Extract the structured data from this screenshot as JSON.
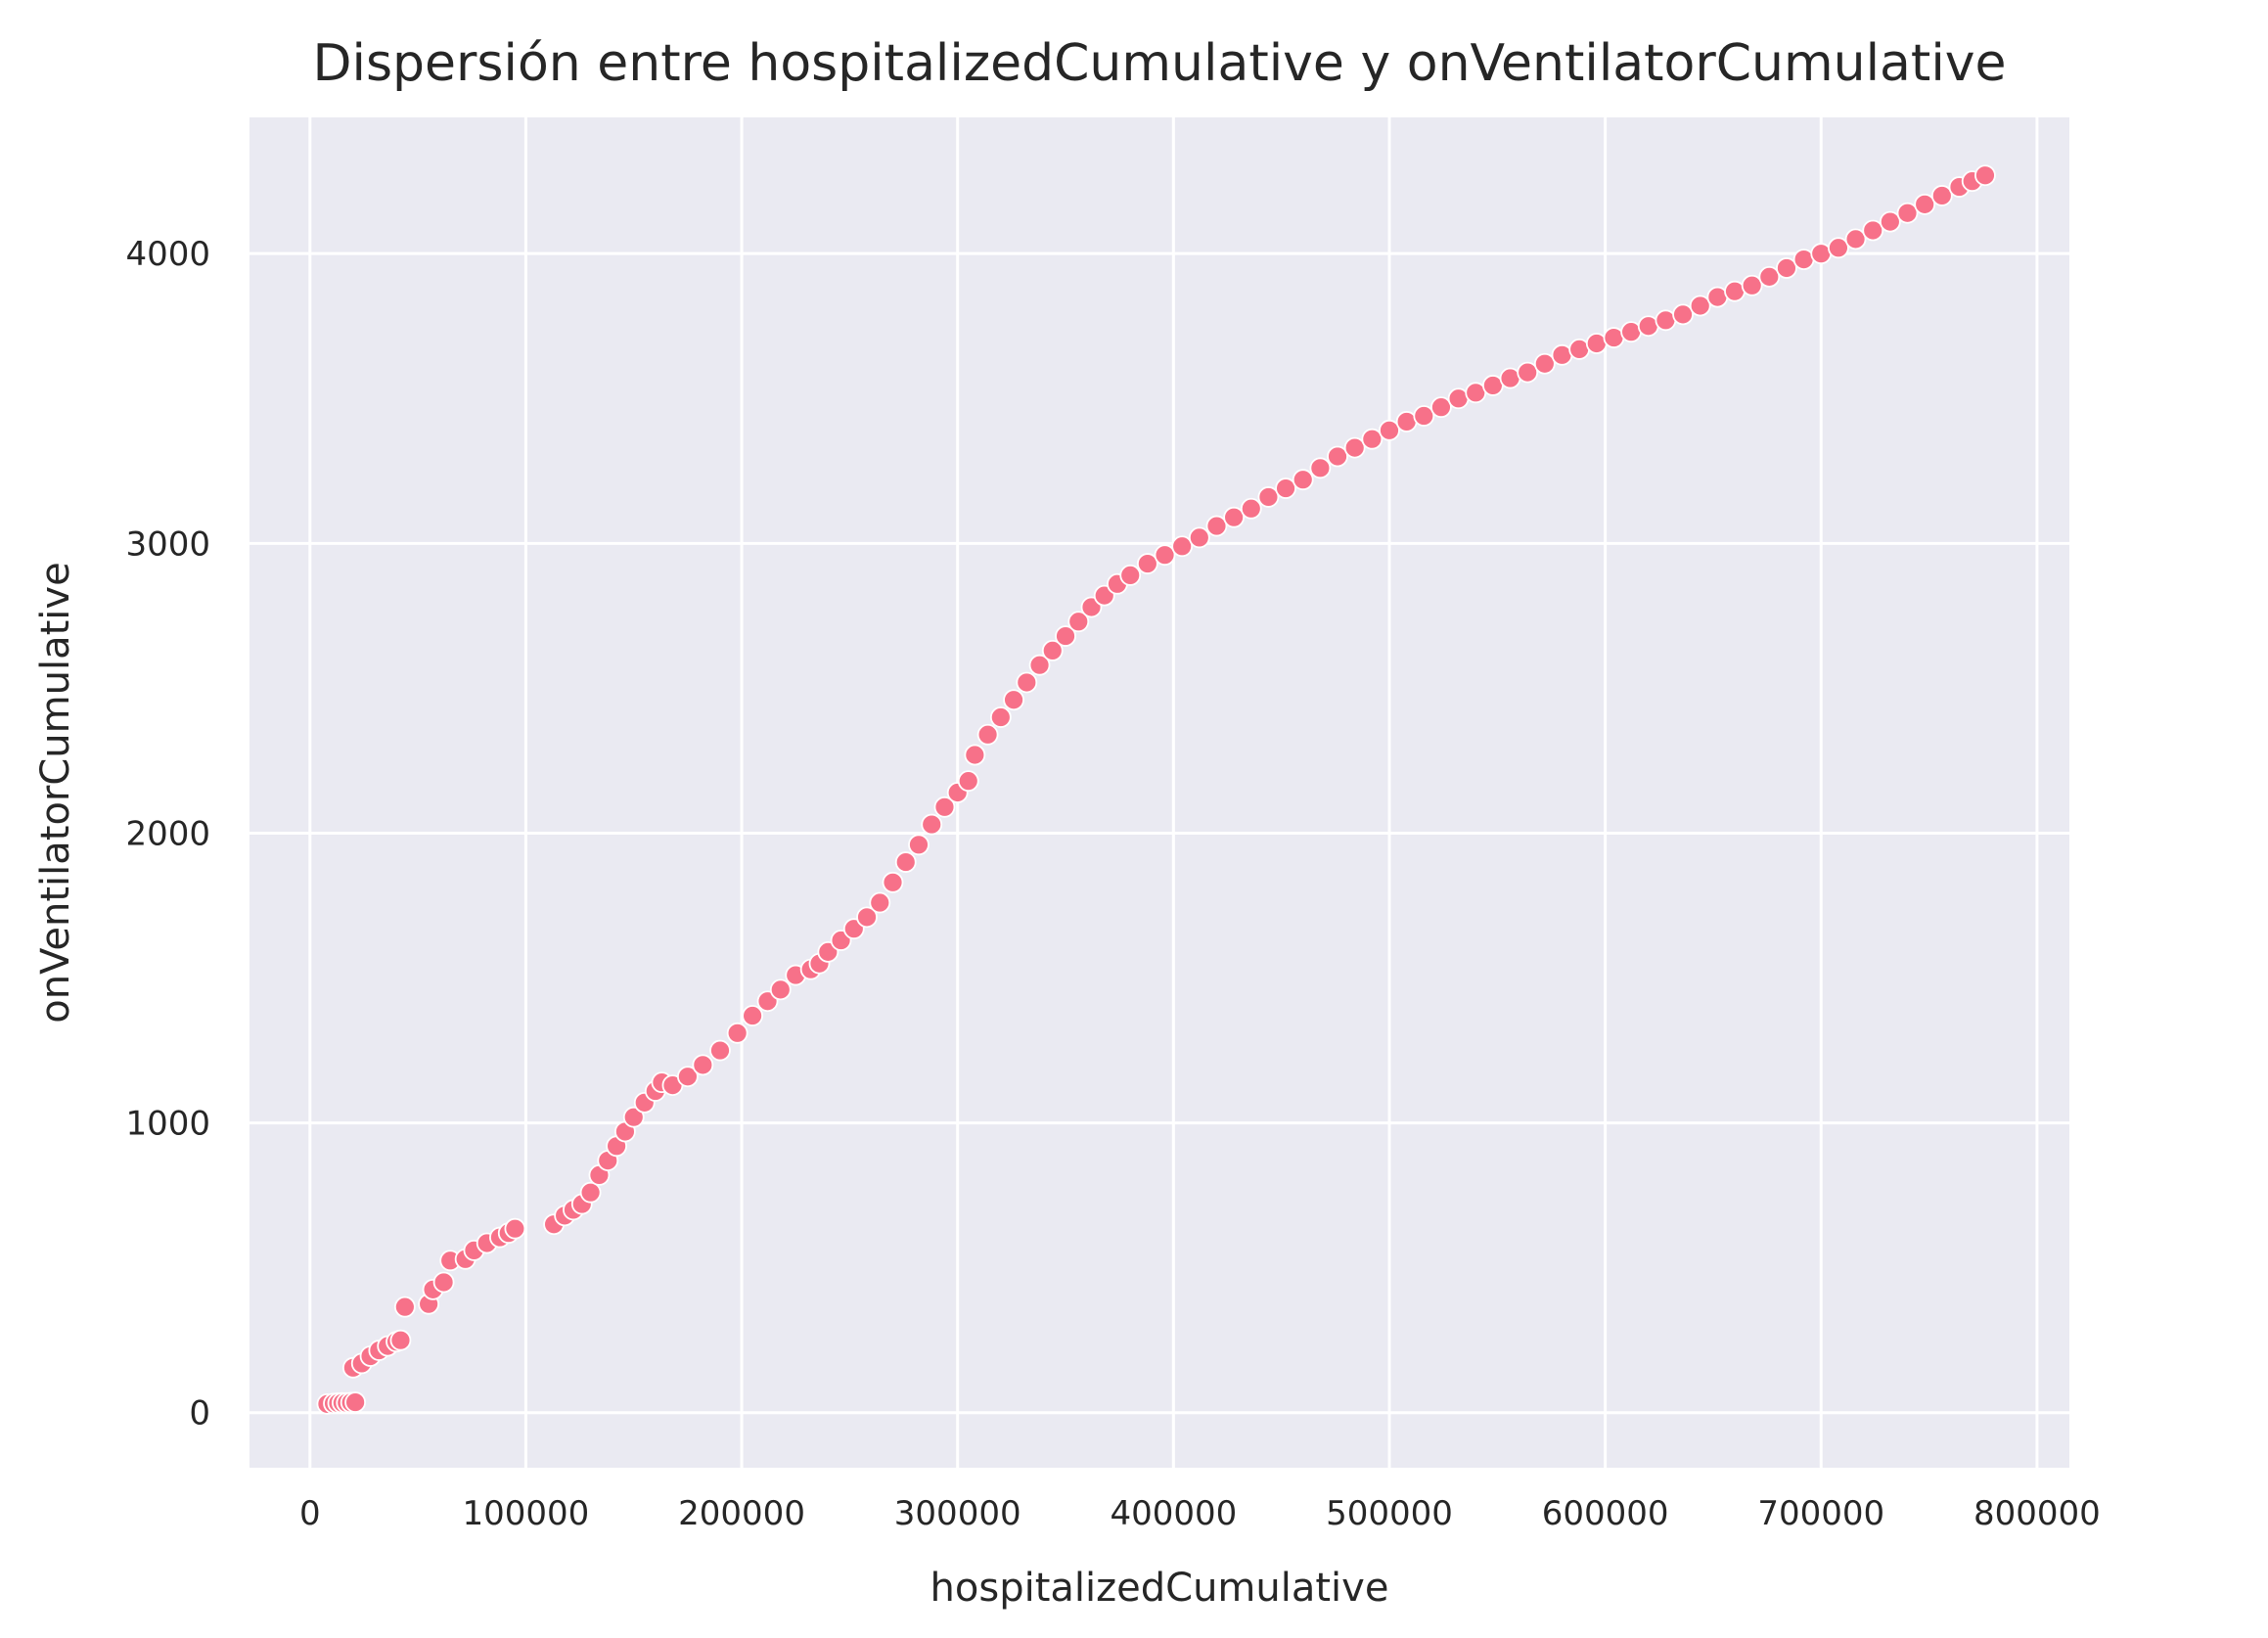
{
  "chart_data": {
    "type": "scatter",
    "title": "Dispersión entre hospitalizedCumulative y onVentilatorCumulative",
    "xlabel": "hospitalizedCumulative",
    "ylabel": "onVentilatorCumulative",
    "xlim": [
      -28000,
      815000
    ],
    "ylim": [
      -190,
      4470
    ],
    "xticks": [
      0,
      100000,
      200000,
      300000,
      400000,
      500000,
      600000,
      700000,
      800000
    ],
    "yticks": [
      0,
      1000,
      2000,
      3000,
      4000
    ],
    "grid": true,
    "background_color": "#eaeaf2",
    "marker_color": "#f77189",
    "x": [
      8000,
      11000,
      13000,
      15000,
      17000,
      19000,
      21000,
      20000,
      24000,
      28000,
      32000,
      36000,
      40000,
      42000,
      44000,
      55000,
      57000,
      62000,
      65000,
      72000,
      76000,
      82000,
      88000,
      92000,
      95000,
      113000,
      118000,
      122000,
      126000,
      130000,
      134000,
      138000,
      142000,
      146000,
      150000,
      155000,
      160000,
      163000,
      168000,
      175000,
      182000,
      190000,
      198000,
      205000,
      212000,
      218000,
      225000,
      232000,
      236000,
      240000,
      246000,
      252000,
      258000,
      264000,
      270000,
      276000,
      282000,
      288000,
      294000,
      300000,
      305000,
      308000,
      314000,
      320000,
      326000,
      332000,
      338000,
      344000,
      350000,
      356000,
      362000,
      368000,
      374000,
      380000,
      388000,
      396000,
      404000,
      412000,
      420000,
      428000,
      436000,
      444000,
      452000,
      460000,
      468000,
      476000,
      484000,
      492000,
      500000,
      508000,
      516000,
      524000,
      532000,
      540000,
      548000,
      556000,
      564000,
      572000,
      580000,
      588000,
      596000,
      604000,
      612000,
      620000,
      628000,
      636000,
      644000,
      652000,
      660000,
      668000,
      676000,
      684000,
      692000,
      700000,
      708000,
      716000,
      724000,
      732000,
      740000,
      748000,
      756000,
      764000,
      770000,
      776000
    ],
    "y": [
      30,
      32,
      33,
      34,
      34,
      35,
      36,
      155,
      170,
      195,
      215,
      230,
      245,
      250,
      365,
      375,
      425,
      450,
      525,
      530,
      560,
      585,
      605,
      620,
      635,
      650,
      680,
      700,
      720,
      760,
      820,
      870,
      920,
      970,
      1020,
      1070,
      1110,
      1140,
      1130,
      1160,
      1200,
      1250,
      1310,
      1370,
      1420,
      1460,
      1510,
      1530,
      1550,
      1590,
      1630,
      1670,
      1710,
      1760,
      1830,
      1900,
      1960,
      2030,
      2090,
      2140,
      2180,
      2270,
      2340,
      2400,
      2460,
      2520,
      2580,
      2630,
      2680,
      2730,
      2780,
      2820,
      2860,
      2890,
      2930,
      2960,
      2990,
      3020,
      3060,
      3090,
      3120,
      3160,
      3190,
      3220,
      3260,
      3300,
      3330,
      3360,
      3390,
      3420,
      3440,
      3470,
      3500,
      3520,
      3545,
      3570,
      3590,
      3620,
      3650,
      3670,
      3690,
      3710,
      3730,
      3750,
      3770,
      3790,
      3820,
      3850,
      3870,
      3890,
      3920,
      3950,
      3980,
      4000,
      4020,
      4050,
      4080,
      4110,
      4140,
      4170,
      4200,
      4230,
      4250,
      4270
    ]
  }
}
